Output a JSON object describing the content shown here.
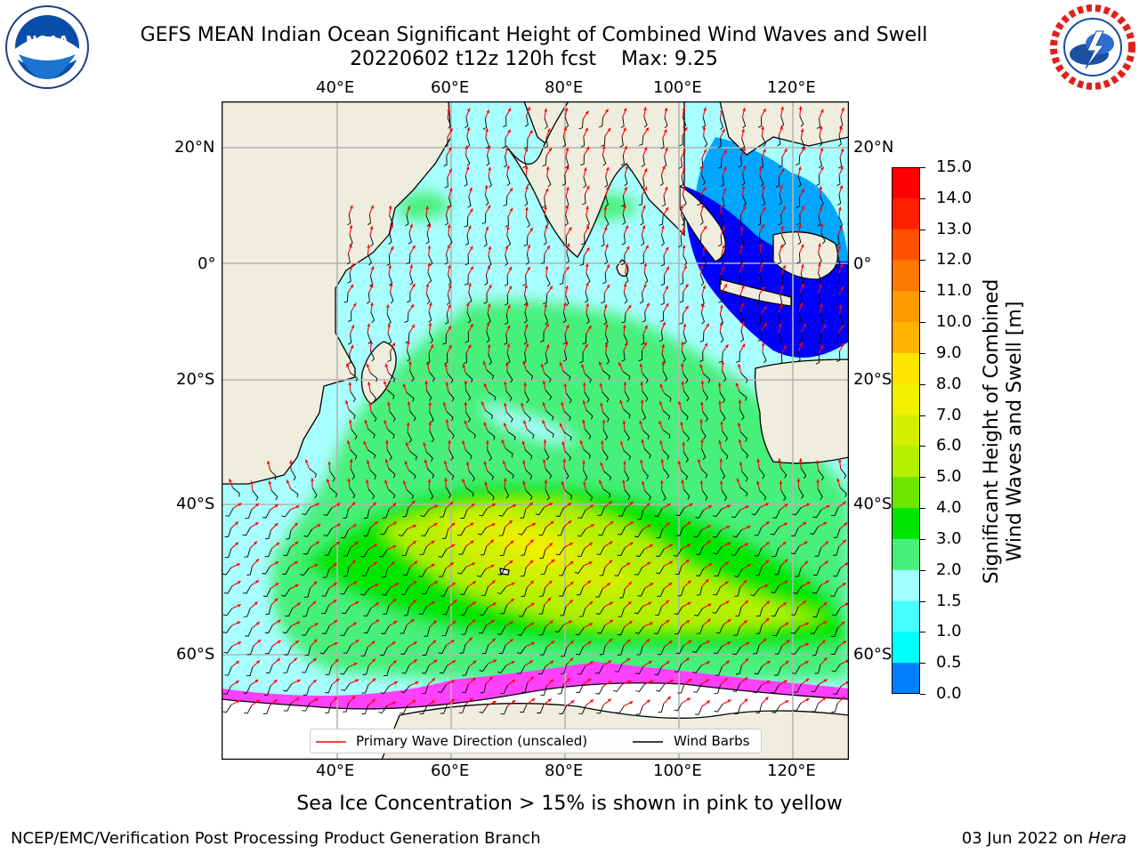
{
  "title": {
    "line1": "GEFS MEAN Indian Ocean Significant Height of Combined Wind Waves and Swell",
    "line2": "20220602 t12z 120h fcst",
    "max_label": "Max: 9.25"
  },
  "logos": {
    "left": {
      "icon": "noaa-logo",
      "text": "NOAA"
    },
    "right": {
      "icon": "nws-logo"
    }
  },
  "map": {
    "lon_ticks": [
      "40°E",
      "60°E",
      "80°E",
      "100°E",
      "120°E"
    ],
    "lat_ticks": [
      "20°N",
      "0°",
      "20°S",
      "40°S",
      "60°S"
    ],
    "colors": {
      "land": "#efedde",
      "ocean_base": "#a8ffff",
      "grid": "#b4b4b4"
    }
  },
  "legend": {
    "wave_direction": "Primary Wave Direction (unscaled)",
    "wind_barbs": "Wind Barbs",
    "wave_color": "#ff0000",
    "barb_color": "#000000"
  },
  "colorbar": {
    "label_line1": "Significant Height of Combined",
    "label_line2": "Wind Waves and Swell [m]",
    "ticks": [
      "15.0",
      "14.0",
      "13.0",
      "12.0",
      "11.0",
      "10.0",
      "9.0",
      "8.0",
      "7.0",
      "6.0",
      "5.0",
      "4.0",
      "3.0",
      "2.0",
      "1.5",
      "1.0",
      "0.5",
      "0.0"
    ],
    "colors": [
      "#ff0000",
      "#ff2000",
      "#ff5000",
      "#ff7800",
      "#ff9a00",
      "#ffb400",
      "#ffe600",
      "#f0f000",
      "#d2f000",
      "#b4f000",
      "#6ee600",
      "#00e600",
      "#46f07a",
      "#a0ffff",
      "#46ffff",
      "#00ffff",
      "#0080ff",
      "#0000ff"
    ]
  },
  "note": "Sea Ice Concentration > 15% is shown in pink to yellow",
  "footer": {
    "left": "NCEP/EMC/Verification Post Processing Product Generation Branch",
    "right_date": "03 Jun 2022 on",
    "right_host": "Hera"
  }
}
